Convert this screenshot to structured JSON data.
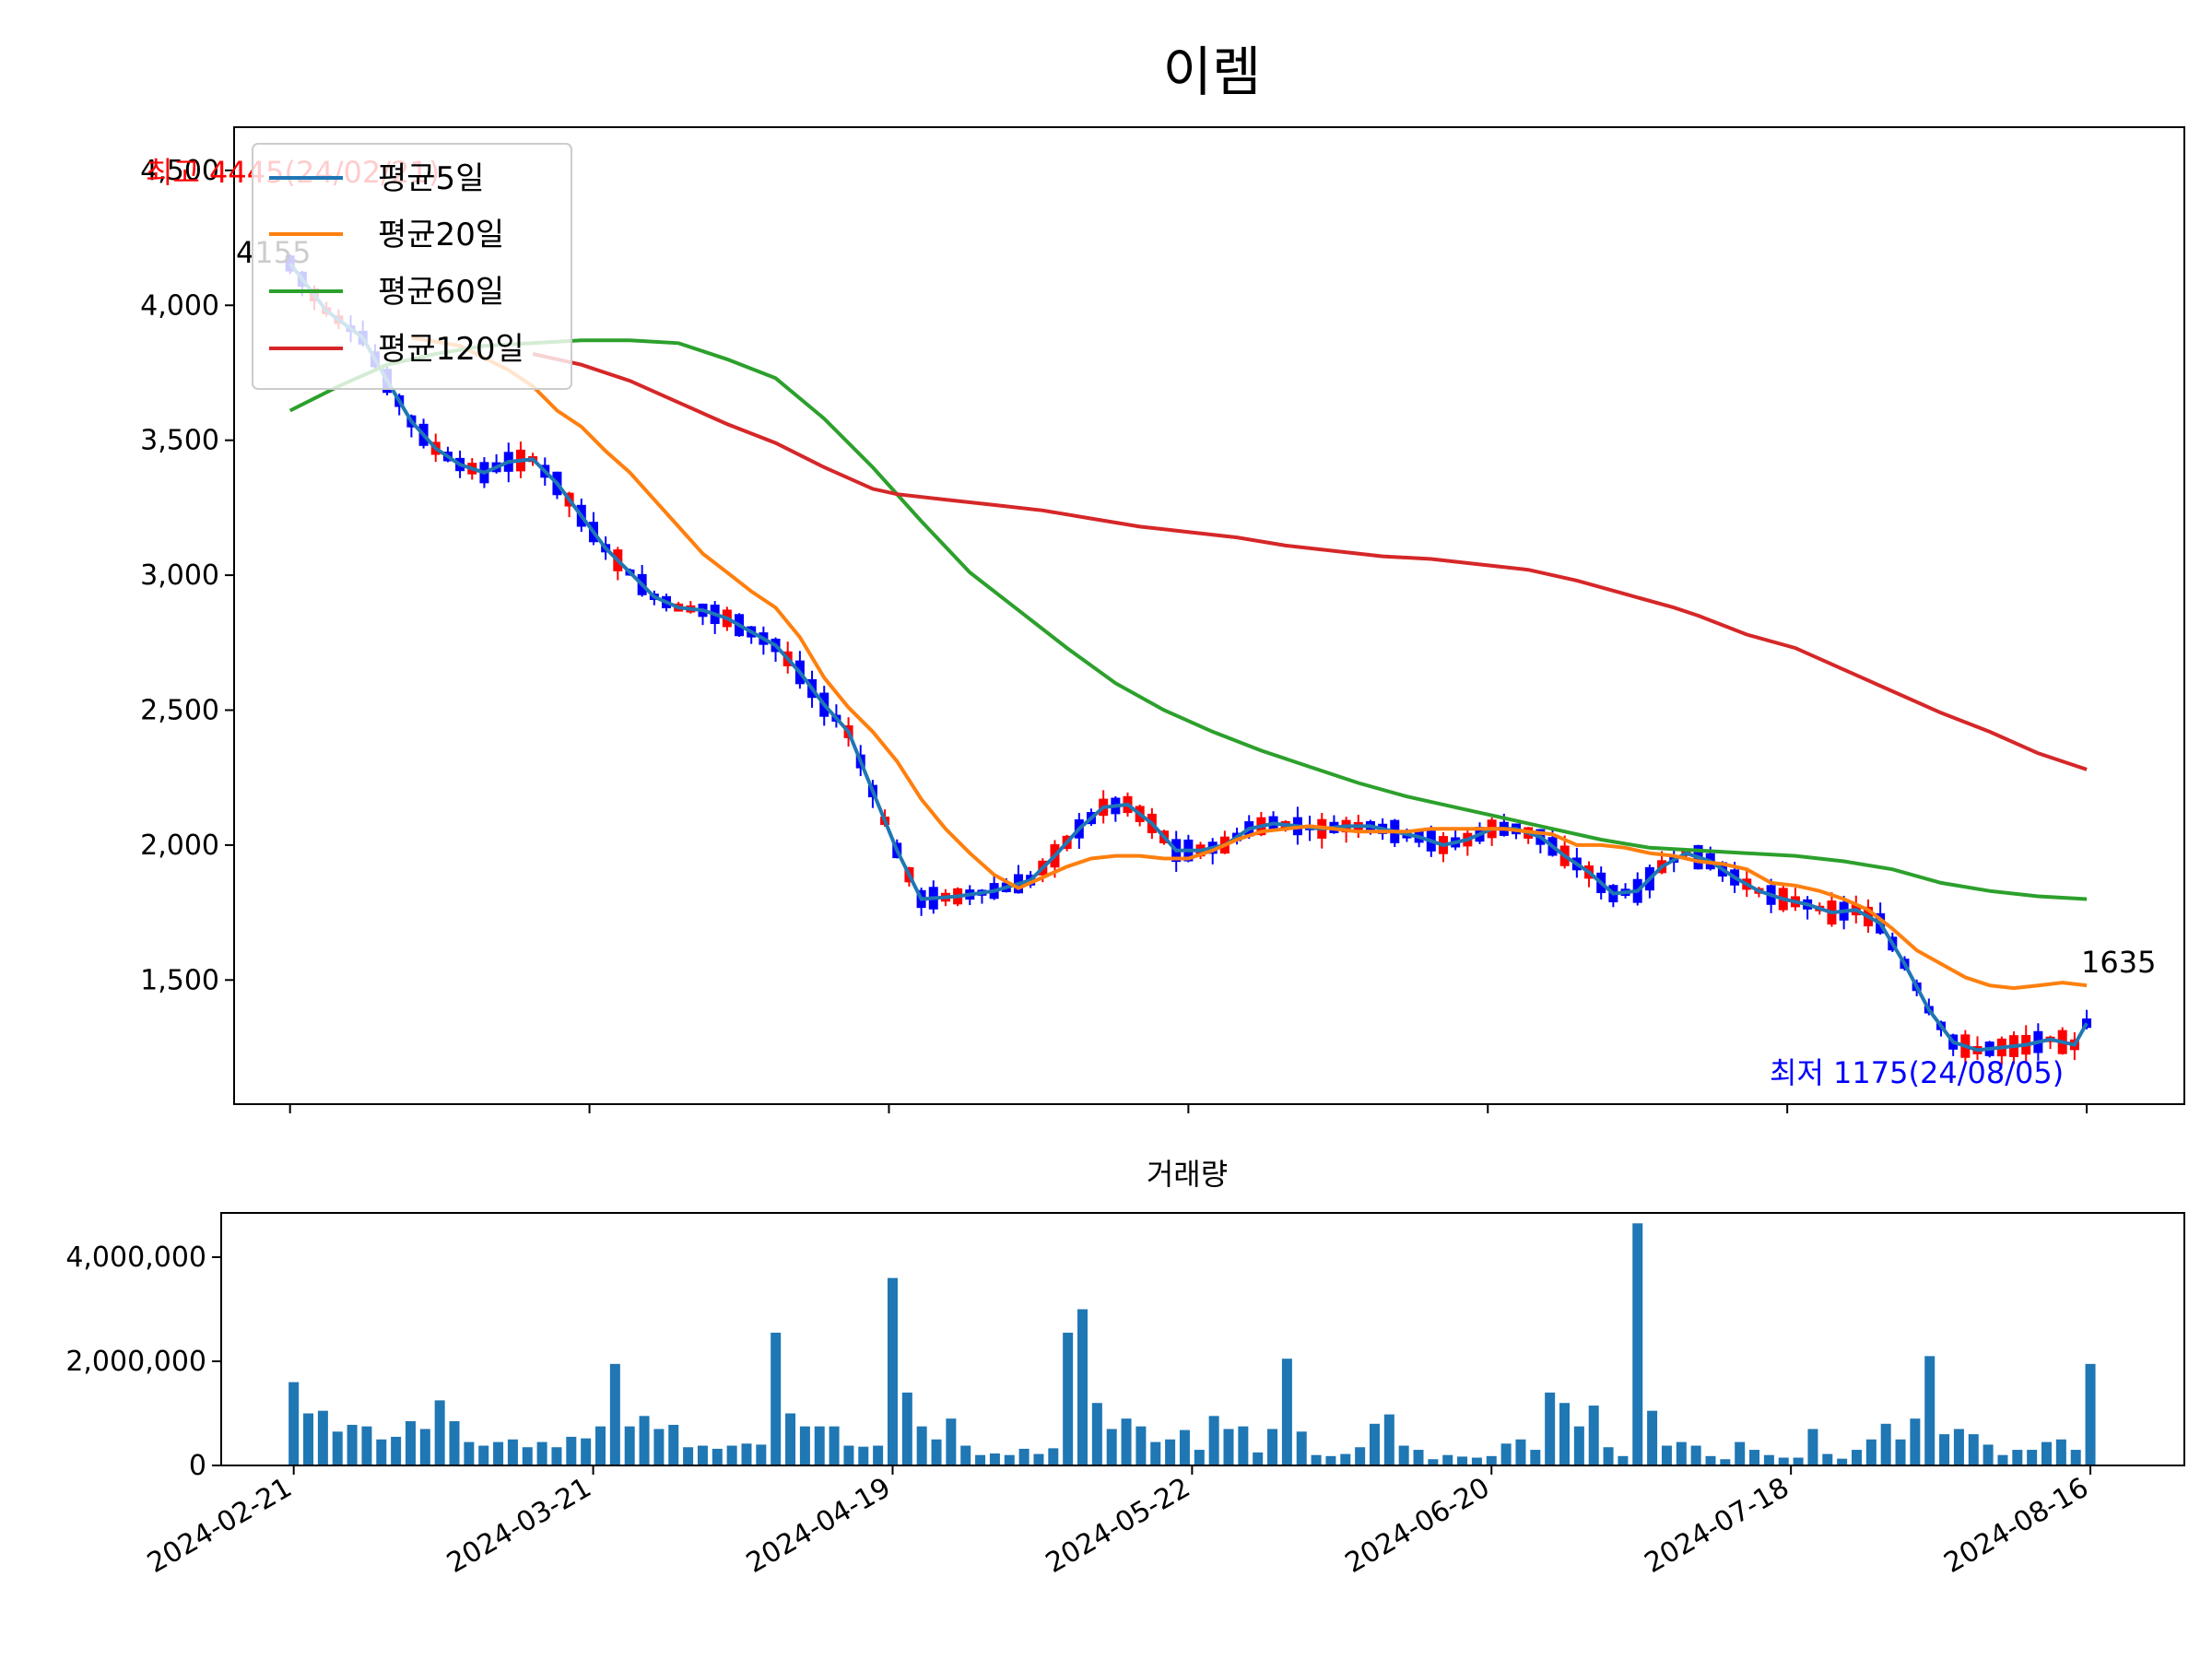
{
  "chart_data": [
    {
      "type": "candlestick",
      "title": "이렘",
      "ylim": [
        1040,
        4660
      ],
      "yticks": [
        1500,
        2000,
        2500,
        3000,
        3500,
        4000,
        4500
      ],
      "ytick_labels": [
        "1,500",
        "2,000",
        "2,500",
        "3,000",
        "3,500",
        "4,000",
        "4,500"
      ],
      "colors": {
        "up": "#ff0000",
        "down": "#0000ff",
        "ma5": "#1f77b4",
        "ma20": "#ff7f0e",
        "ma60": "#2ca02c",
        "ma120": "#d62728"
      },
      "legend": {
        "placement": "upper-left",
        "entries": [
          "평균5일",
          "평균20일",
          "평균60일",
          "평균120일"
        ]
      },
      "annotations": {
        "high": {
          "text": "최고 4445(24/02/21)",
          "value": 4445,
          "color": "#ff0000"
        },
        "first_close": {
          "text": "4155",
          "value": 4155
        },
        "last_close": {
          "text": "1635",
          "value": 1635
        },
        "low": {
          "text": "최저 1175(24/08/05)",
          "value": 1175,
          "color": "#0000ff"
        }
      },
      "series": [
        {
          "name": "평균5일",
          "points": [
            [
              0,
              4155
            ],
            [
              3,
              3980
            ],
            [
              6,
              3880
            ],
            [
              8,
              3720
            ],
            [
              10,
              3570
            ],
            [
              12,
              3470
            ],
            [
              14,
              3410
            ],
            [
              16,
              3380
            ],
            [
              18,
              3420
            ],
            [
              20,
              3430
            ],
            [
              22,
              3340
            ],
            [
              24,
              3220
            ],
            [
              26,
              3100
            ],
            [
              28,
              3010
            ],
            [
              30,
              2920
            ],
            [
              32,
              2880
            ],
            [
              34,
              2870
            ],
            [
              36,
              2840
            ],
            [
              38,
              2790
            ],
            [
              40,
              2740
            ],
            [
              42,
              2640
            ],
            [
              44,
              2520
            ],
            [
              46,
              2420
            ],
            [
              48,
              2200
            ],
            [
              50,
              1980
            ],
            [
              52,
              1800
            ],
            [
              55,
              1810
            ],
            [
              58,
              1830
            ],
            [
              61,
              1870
            ],
            [
              63,
              1960
            ],
            [
              65,
              2060
            ],
            [
              67,
              2140
            ],
            [
              69,
              2150
            ],
            [
              71,
              2080
            ],
            [
              73,
              1980
            ],
            [
              75,
              1980
            ],
            [
              77,
              2000
            ],
            [
              79,
              2060
            ],
            [
              81,
              2080
            ],
            [
              83,
              2070
            ],
            [
              85,
              2060
            ],
            [
              87,
              2070
            ],
            [
              89,
              2070
            ],
            [
              91,
              2050
            ],
            [
              93,
              2030
            ],
            [
              95,
              2000
            ],
            [
              97,
              2020
            ],
            [
              99,
              2060
            ],
            [
              101,
              2060
            ],
            [
              103,
              2030
            ],
            [
              105,
              1960
            ],
            [
              107,
              1900
            ],
            [
              109,
              1820
            ],
            [
              111,
              1830
            ],
            [
              113,
              1920
            ],
            [
              115,
              1970
            ],
            [
              117,
              1940
            ],
            [
              119,
              1880
            ],
            [
              121,
              1830
            ],
            [
              123,
              1800
            ],
            [
              125,
              1780
            ],
            [
              127,
              1750
            ],
            [
              129,
              1760
            ],
            [
              131,
              1710
            ],
            [
              133,
              1560
            ],
            [
              135,
              1390
            ],
            [
              137,
              1270
            ],
            [
              139,
              1240
            ],
            [
              141,
              1250
            ],
            [
              143,
              1260
            ],
            [
              145,
              1280
            ],
            [
              147,
              1260
            ],
            [
              148,
              1340
            ]
          ]
        },
        {
          "name": "평균20일",
          "points": [
            [
              10,
              3880
            ],
            [
              14,
              3850
            ],
            [
              18,
              3760
            ],
            [
              20,
              3700
            ],
            [
              22,
              3610
            ],
            [
              24,
              3550
            ],
            [
              26,
              3460
            ],
            [
              28,
              3380
            ],
            [
              30,
              3280
            ],
            [
              32,
              3180
            ],
            [
              34,
              3080
            ],
            [
              36,
              3010
            ],
            [
              38,
              2940
            ],
            [
              40,
              2880
            ],
            [
              42,
              2770
            ],
            [
              44,
              2620
            ],
            [
              46,
              2510
            ],
            [
              48,
              2420
            ],
            [
              50,
              2310
            ],
            [
              52,
              2170
            ],
            [
              54,
              2060
            ],
            [
              56,
              1970
            ],
            [
              58,
              1890
            ],
            [
              60,
              1840
            ],
            [
              62,
              1880
            ],
            [
              64,
              1920
            ],
            [
              66,
              1950
            ],
            [
              68,
              1960
            ],
            [
              70,
              1960
            ],
            [
              72,
              1950
            ],
            [
              74,
              1950
            ],
            [
              76,
              1980
            ],
            [
              78,
              2020
            ],
            [
              80,
              2050
            ],
            [
              82,
              2060
            ],
            [
              84,
              2070
            ],
            [
              86,
              2060
            ],
            [
              88,
              2050
            ],
            [
              90,
              2050
            ],
            [
              92,
              2050
            ],
            [
              94,
              2060
            ],
            [
              96,
              2060
            ],
            [
              98,
              2060
            ],
            [
              100,
              2060
            ],
            [
              102,
              2050
            ],
            [
              104,
              2040
            ],
            [
              106,
              2000
            ],
            [
              108,
              2000
            ],
            [
              110,
              1990
            ],
            [
              112,
              1970
            ],
            [
              114,
              1960
            ],
            [
              116,
              1940
            ],
            [
              118,
              1930
            ],
            [
              120,
              1910
            ],
            [
              122,
              1860
            ],
            [
              124,
              1850
            ],
            [
              126,
              1830
            ],
            [
              128,
              1800
            ],
            [
              130,
              1760
            ],
            [
              132,
              1690
            ],
            [
              134,
              1610
            ],
            [
              136,
              1560
            ],
            [
              138,
              1510
            ],
            [
              140,
              1480
            ],
            [
              142,
              1470
            ],
            [
              144,
              1480
            ],
            [
              146,
              1490
            ],
            [
              148,
              1480
            ]
          ]
        },
        {
          "name": "평균60일",
          "points": [
            [
              0,
              3610
            ],
            [
              4,
              3700
            ],
            [
              8,
              3780
            ],
            [
              12,
              3820
            ],
            [
              16,
              3850
            ],
            [
              20,
              3860
            ],
            [
              24,
              3870
            ],
            [
              28,
              3870
            ],
            [
              32,
              3860
            ],
            [
              36,
              3800
            ],
            [
              40,
              3730
            ],
            [
              44,
              3580
            ],
            [
              48,
              3400
            ],
            [
              52,
              3200
            ],
            [
              56,
              3010
            ],
            [
              60,
              2870
            ],
            [
              64,
              2730
            ],
            [
              68,
              2600
            ],
            [
              72,
              2500
            ],
            [
              76,
              2420
            ],
            [
              80,
              2350
            ],
            [
              84,
              2290
            ],
            [
              88,
              2230
            ],
            [
              92,
              2180
            ],
            [
              96,
              2140
            ],
            [
              100,
              2100
            ],
            [
              104,
              2060
            ],
            [
              108,
              2020
            ],
            [
              112,
              1990
            ],
            [
              116,
              1980
            ],
            [
              120,
              1970
            ],
            [
              124,
              1960
            ],
            [
              128,
              1940
            ],
            [
              132,
              1910
            ],
            [
              136,
              1860
            ],
            [
              140,
              1830
            ],
            [
              144,
              1810
            ],
            [
              148,
              1800
            ]
          ]
        },
        {
          "name": "평균120일",
          "points": [
            [
              20,
              3820
            ],
            [
              24,
              3780
            ],
            [
              28,
              3720
            ],
            [
              32,
              3640
            ],
            [
              36,
              3560
            ],
            [
              40,
              3490
            ],
            [
              44,
              3400
            ],
            [
              48,
              3320
            ],
            [
              50,
              3300
            ],
            [
              54,
              3280
            ],
            [
              58,
              3260
            ],
            [
              62,
              3240
            ],
            [
              66,
              3210
            ],
            [
              70,
              3180
            ],
            [
              74,
              3160
            ],
            [
              78,
              3140
            ],
            [
              82,
              3110
            ],
            [
              86,
              3090
            ],
            [
              90,
              3070
            ],
            [
              94,
              3060
            ],
            [
              98,
              3040
            ],
            [
              102,
              3020
            ],
            [
              106,
              2980
            ],
            [
              110,
              2930
            ],
            [
              114,
              2880
            ],
            [
              116,
              2850
            ],
            [
              120,
              2780
            ],
            [
              124,
              2730
            ],
            [
              128,
              2650
            ],
            [
              132,
              2570
            ],
            [
              136,
              2490
            ],
            [
              140,
              2420
            ],
            [
              144,
              2340
            ],
            [
              148,
              2280
            ]
          ]
        }
      ]
    },
    {
      "type": "bar",
      "title": "거래량",
      "ylim": [
        0,
        4850000
      ],
      "yticks": [
        0,
        2000000,
        4000000
      ],
      "ytick_labels": [
        "0",
        "2,000,000",
        "4,000,000"
      ],
      "color": "#1f77b4",
      "values": [
        1600000,
        1000000,
        1050000,
        650000,
        780000,
        750000,
        500000,
        550000,
        850000,
        700000,
        1250000,
        850000,
        450000,
        380000,
        450000,
        500000,
        350000,
        450000,
        350000,
        550000,
        520000,
        750000,
        1950000,
        750000,
        950000,
        700000,
        780000,
        350000,
        380000,
        320000,
        380000,
        420000,
        400000,
        2550000,
        1000000,
        750000,
        750000,
        750000,
        380000,
        360000,
        380000,
        3600000,
        1400000,
        750000,
        500000,
        900000,
        380000,
        200000,
        230000,
        200000,
        320000,
        220000,
        330000,
        2550000,
        3000000,
        1200000,
        700000,
        900000,
        750000,
        450000,
        500000,
        680000,
        300000,
        950000,
        700000,
        750000,
        250000,
        700000,
        2050000,
        650000,
        200000,
        180000,
        220000,
        350000,
        800000,
        980000,
        380000,
        300000,
        120000,
        200000,
        170000,
        150000,
        180000,
        420000,
        500000,
        300000,
        1400000,
        1200000,
        750000,
        1150000,
        350000,
        180000,
        4650000,
        1050000,
        380000,
        450000,
        380000,
        180000,
        120000,
        450000,
        300000,
        200000,
        150000,
        150000,
        700000,
        220000,
        130000,
        300000,
        500000,
        800000,
        500000,
        900000,
        2100000,
        600000,
        700000,
        600000,
        400000,
        200000,
        300000,
        300000,
        450000,
        500000,
        300000,
        1950000
      ]
    }
  ],
  "x_axis": {
    "tick_positions": [
      0,
      25,
      50,
      75,
      100,
      125,
      150
    ],
    "tick_labels": [
      "2024-02-21",
      "2024-03-21",
      "2024-04-19",
      "2024-05-22",
      "2024-06-20",
      "2024-07-18",
      "2024-08-16"
    ]
  }
}
